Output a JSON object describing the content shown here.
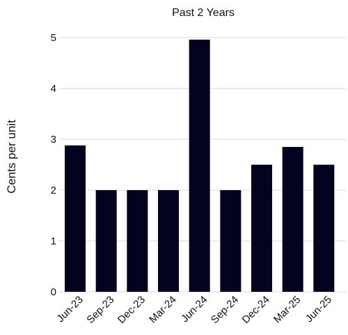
{
  "chart_data": {
    "type": "bar",
    "title": "Past 2 Years",
    "ylabel": "Cents per unit",
    "xlabel": "",
    "categories": [
      "Jun-23",
      "Sep-23",
      "Dec-23",
      "Mar-24",
      "Jun-24",
      "Sep-24",
      "Dec-24",
      "Mar-25",
      "Jun-25"
    ],
    "values": [
      2.88,
      2.0,
      2.0,
      2.0,
      4.96,
      2.0,
      2.5,
      2.85,
      2.5
    ],
    "ylim": [
      0,
      5
    ],
    "yticks": [
      "0",
      "1",
      "2",
      "3",
      "4",
      "5"
    ],
    "grid": true,
    "bar_color": "#03021f",
    "grid_color": "#d9d9d9"
  }
}
